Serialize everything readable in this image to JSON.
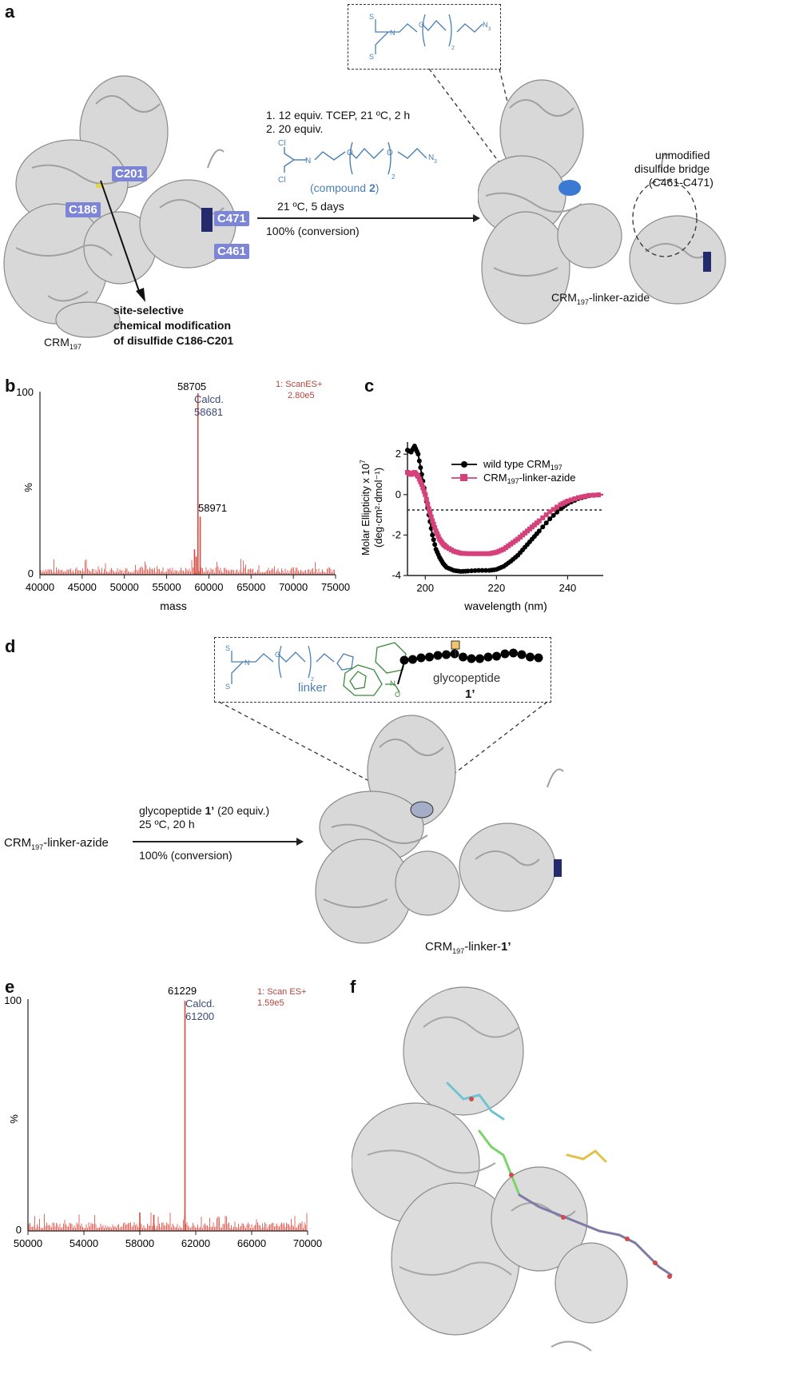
{
  "panels": {
    "a": {
      "letter": "a",
      "labels": {
        "c201": "C201",
        "c186": "C186",
        "c471": "C471",
        "c461": "C461"
      },
      "protein_left_caption_main": "CRM",
      "protein_left_caption_sub": "197",
      "site_selective_line1": "site-selective",
      "site_selective_line2": "chemical modification",
      "site_selective_line3": "of disulfide C186-C201",
      "step1": "1. 12 equiv. TCEP, 21 ºC, 2 h",
      "step2": "2. 20 equiv.",
      "compound_label_prefix": "(compound ",
      "compound_label_num": "2",
      "compound_label_suffix": ")",
      "compound_subscript": "2",
      "reaction_conditions": "21 ºC, 5 days",
      "conversion": "100% (conversion)",
      "unmodified_line1": "unmodified",
      "unmodified_line2": "disulfide bridge",
      "unmodified_line3": "(C461-C471)",
      "product_caption_main": "CRM",
      "product_caption_sub": "197",
      "product_caption_rest": "-linker-azide",
      "chem_atoms": {
        "cl": "Cl",
        "n": "N",
        "o": "O",
        "n3": "N",
        "n3_sub": "3",
        "s": "S",
        "sub2": "2"
      }
    },
    "b": {
      "letter": "b",
      "peak_main": "58705",
      "calcd_label": "Calcd.",
      "calcd_value": "58681",
      "peak_secondary": "58971",
      "scan_line1": "1: ScanES+",
      "scan_line2": "2.80e5",
      "y_label": "%",
      "y_ticks": [
        "100",
        "0"
      ],
      "x_label": "mass",
      "x_ticks": [
        "40000",
        "45000",
        "50000",
        "55000",
        "60000",
        "65000",
        "70000",
        "75000"
      ]
    },
    "c": {
      "letter": "c",
      "y_label_line1": "Molar Ellipticity x 10",
      "y_label_exp": "7",
      "y_label_line2": "(deg·cm²·dmol⁻¹)",
      "x_label": "wavelength (nm)",
      "y_ticks": [
        "2",
        "0",
        "-2",
        "-4"
      ],
      "x_ticks": [
        "200",
        "220",
        "240"
      ],
      "legend": [
        {
          "main": "wild type CRM",
          "sub": "197",
          "rest": ""
        },
        {
          "main": "CRM",
          "sub": "197",
          "rest": "-linker-azide"
        }
      ]
    },
    "d": {
      "letter": "d",
      "start_main": "CRM",
      "start_sub": "197",
      "start_rest": "-linker-azide",
      "reagent_prefix": "glycopeptide ",
      "reagent_bold": "1’",
      "reagent_suffix": " (20 equiv.)",
      "conditions": "25 ºC, 20 h",
      "conversion": "100% (conversion)",
      "linker_label": "linker",
      "glycopeptide_label": "glycopeptide",
      "glycopeptide_num": "1’",
      "product_main": "CRM",
      "product_sub": "197",
      "product_rest": "-linker-",
      "product_bold": "1’",
      "chem_atoms": {
        "s": "S",
        "n": "N",
        "o": "O",
        "sub2": "2"
      }
    },
    "e": {
      "letter": "e",
      "peak_main": "61229",
      "calcd_label": "Calcd.",
      "calcd_value": "61200",
      "scan_line1": "1: Scan ES+",
      "scan_line2": "1.59e5",
      "y_label": "%",
      "y_ticks": [
        "100",
        "0"
      ],
      "x_ticks": [
        "50000",
        "54000",
        "58000",
        "62000",
        "66000",
        "70000"
      ]
    },
    "f": {
      "letter": "f"
    }
  },
  "colors": {
    "spectrum_red": "#d9473c",
    "wild_type": "#000000",
    "linker_azide": "#d5417a",
    "chem_blue": "#4a7fb5",
    "chem_green": "#3a8a3a",
    "label_purple": "#7d86d6"
  },
  "chart_data": [
    {
      "type": "line",
      "panel": "b",
      "xlabel": "mass",
      "ylabel": "%",
      "xlim": [
        40000,
        75000
      ],
      "ylim": [
        0,
        100
      ],
      "peaks": [
        {
          "x": 58705,
          "y": 100
        },
        {
          "x": 58971,
          "y": 32
        },
        {
          "x": 58300,
          "y": 14
        },
        {
          "x": 58500,
          "y": 10
        }
      ],
      "baseline_noise_max": 8
    },
    {
      "type": "scatter",
      "panel": "c",
      "xlabel": "wavelength (nm)",
      "ylabel": "Molar Ellipticity x 10^7 (deg·cm²·dmol⁻¹)",
      "xlim": [
        195,
        250
      ],
      "ylim": [
        -4,
        2.6
      ],
      "grid": false,
      "legend_position": "top-right",
      "series": [
        {
          "name": "wild type CRM197",
          "x": [
            195,
            196,
            197,
            198,
            199,
            200,
            201,
            202,
            203,
            204,
            205,
            206,
            208,
            210,
            212,
            215,
            218,
            220,
            222,
            224,
            226,
            228,
            230,
            232,
            235,
            238,
            240,
            243,
            246,
            250
          ],
          "y": [
            2.2,
            2.1,
            2.4,
            2.0,
            1.0,
            0.0,
            -1.0,
            -2.0,
            -2.7,
            -3.1,
            -3.4,
            -3.6,
            -3.75,
            -3.8,
            -3.78,
            -3.75,
            -3.75,
            -3.7,
            -3.55,
            -3.3,
            -3.0,
            -2.6,
            -2.2,
            -1.8,
            -1.2,
            -0.7,
            -0.45,
            -0.2,
            -0.06,
            0.0
          ]
        },
        {
          "name": "CRM197-linker-azide",
          "x": [
            195,
            196,
            197,
            198,
            199,
            200,
            201,
            202,
            203,
            204,
            205,
            206,
            208,
            210,
            212,
            215,
            218,
            220,
            222,
            224,
            226,
            228,
            230,
            232,
            235,
            238,
            240,
            243,
            246,
            250
          ],
          "y": [
            1.1,
            1.0,
            1.1,
            0.9,
            0.5,
            0.0,
            -0.7,
            -1.3,
            -1.8,
            -2.2,
            -2.45,
            -2.6,
            -2.8,
            -2.9,
            -2.92,
            -2.92,
            -2.92,
            -2.85,
            -2.7,
            -2.45,
            -2.2,
            -1.9,
            -1.6,
            -1.3,
            -0.85,
            -0.5,
            -0.32,
            -0.15,
            -0.04,
            0.0
          ]
        }
      ]
    },
    {
      "type": "line",
      "panel": "e",
      "ylabel": "%",
      "xlim": [
        50000,
        70000
      ],
      "ylim": [
        0,
        100
      ],
      "peaks": [
        {
          "x": 61229,
          "y": 100
        },
        {
          "x": 58000,
          "y": 8
        },
        {
          "x": 59000,
          "y": 7
        }
      ],
      "baseline_noise_max": 7
    }
  ]
}
